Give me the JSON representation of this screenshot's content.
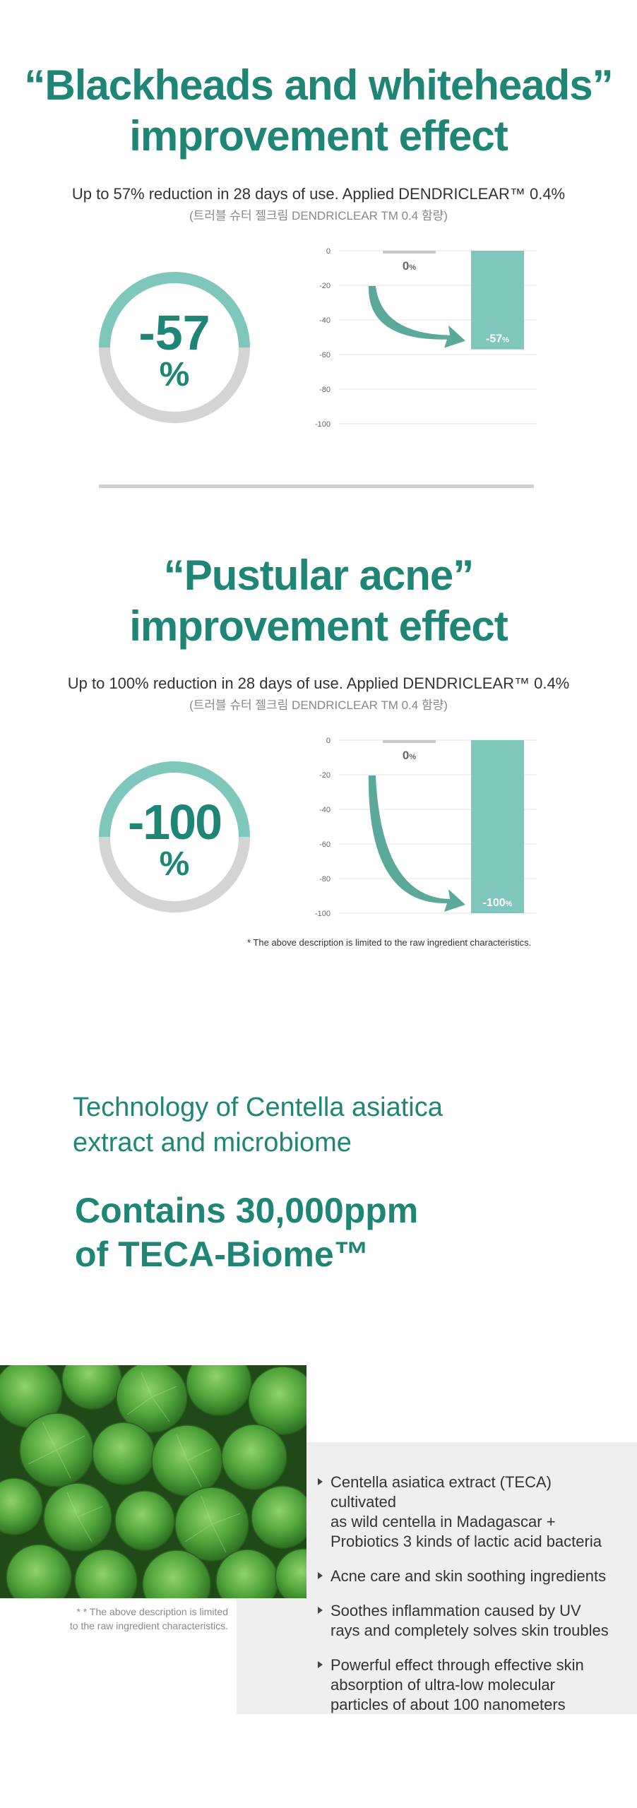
{
  "section1": {
    "heading_line1": "“Blackheads and whiteheads”",
    "heading_line2": "improvement effect",
    "subtitle": "Up to 57% reduction in 28 days of use. Applied DENDRICLEAR™ 0.4%",
    "subtitle_ko": "(트러블 슈터 젤크림 DENDRICLEAR TM 0.4 함량)",
    "ring_value": "-57",
    "ring_unit": "%",
    "ring_fill_fraction": 0.5
  },
  "section2": {
    "heading_line1": "“Pustular acne”",
    "heading_line2": "improvement effect",
    "subtitle": "Up to 100% reduction in 28 days of use. Applied DENDRICLEAR™ 0.4%",
    "subtitle_ko": "(트러블 슈터 젤크림 DENDRICLEAR TM 0.4 함량)",
    "ring_value": "-100",
    "ring_unit": "%",
    "ring_fill_fraction": 0.5,
    "footnote": "* The above description is limited to the raw ingredient characteristics."
  },
  "chart_data": [
    {
      "type": "bar",
      "categories": [
        "",
        ""
      ],
      "values": [
        0,
        -57
      ],
      "value_labels": [
        "0",
        "-57"
      ],
      "label_unit": "%",
      "ylim": [
        -100,
        0
      ],
      "yticks": [
        "0",
        "-20",
        "-40",
        "-60",
        "-80",
        "-100"
      ],
      "grid": true,
      "colors": [
        "#c9c9c9",
        "#7fc6bb"
      ]
    },
    {
      "type": "bar",
      "categories": [
        "",
        ""
      ],
      "values": [
        0,
        -100
      ],
      "value_labels": [
        "0",
        "-100"
      ],
      "label_unit": "%",
      "ylim": [
        -100,
        0
      ],
      "yticks": [
        "0",
        "-20",
        "-40",
        "-60",
        "-80",
        "-100"
      ],
      "grid": true,
      "colors": [
        "#c9c9c9",
        "#7fc6bb"
      ]
    }
  ],
  "technology": {
    "title_line1": "Technology of Centella asiatica",
    "title_line2": "extract and microbiome",
    "big_line1": "Contains 30,000ppm",
    "big_line2": "of TECA-Biome™"
  },
  "photo_note_line1": "* * The above description is limited",
  "photo_note_line2": "to the raw ingredient characteristics.",
  "features": [
    [
      "Centella asiatica extract (TECA) cultivated",
      "as wild centella in Madagascar +",
      "Probiotics 3 kinds of lactic acid bacteria"
    ],
    [
      "Acne care and skin soothing ingredients"
    ],
    [
      "Soothes inflammation caused by UV",
      "rays and completely solves skin troubles"
    ],
    [
      "Powerful effect through effective skin",
      "absorption of ultra-low molecular",
      "particles of about 100 nanometers"
    ]
  ],
  "colors": {
    "accent": "#1f8676",
    "ring_top": "#7fc6bb",
    "ring_bottom": "#d4d4d4",
    "bar": "#7fc6bb",
    "bar_zero": "#c9c9c9",
    "divider": "#cfcfcf",
    "feature_bg": "#efefef"
  }
}
